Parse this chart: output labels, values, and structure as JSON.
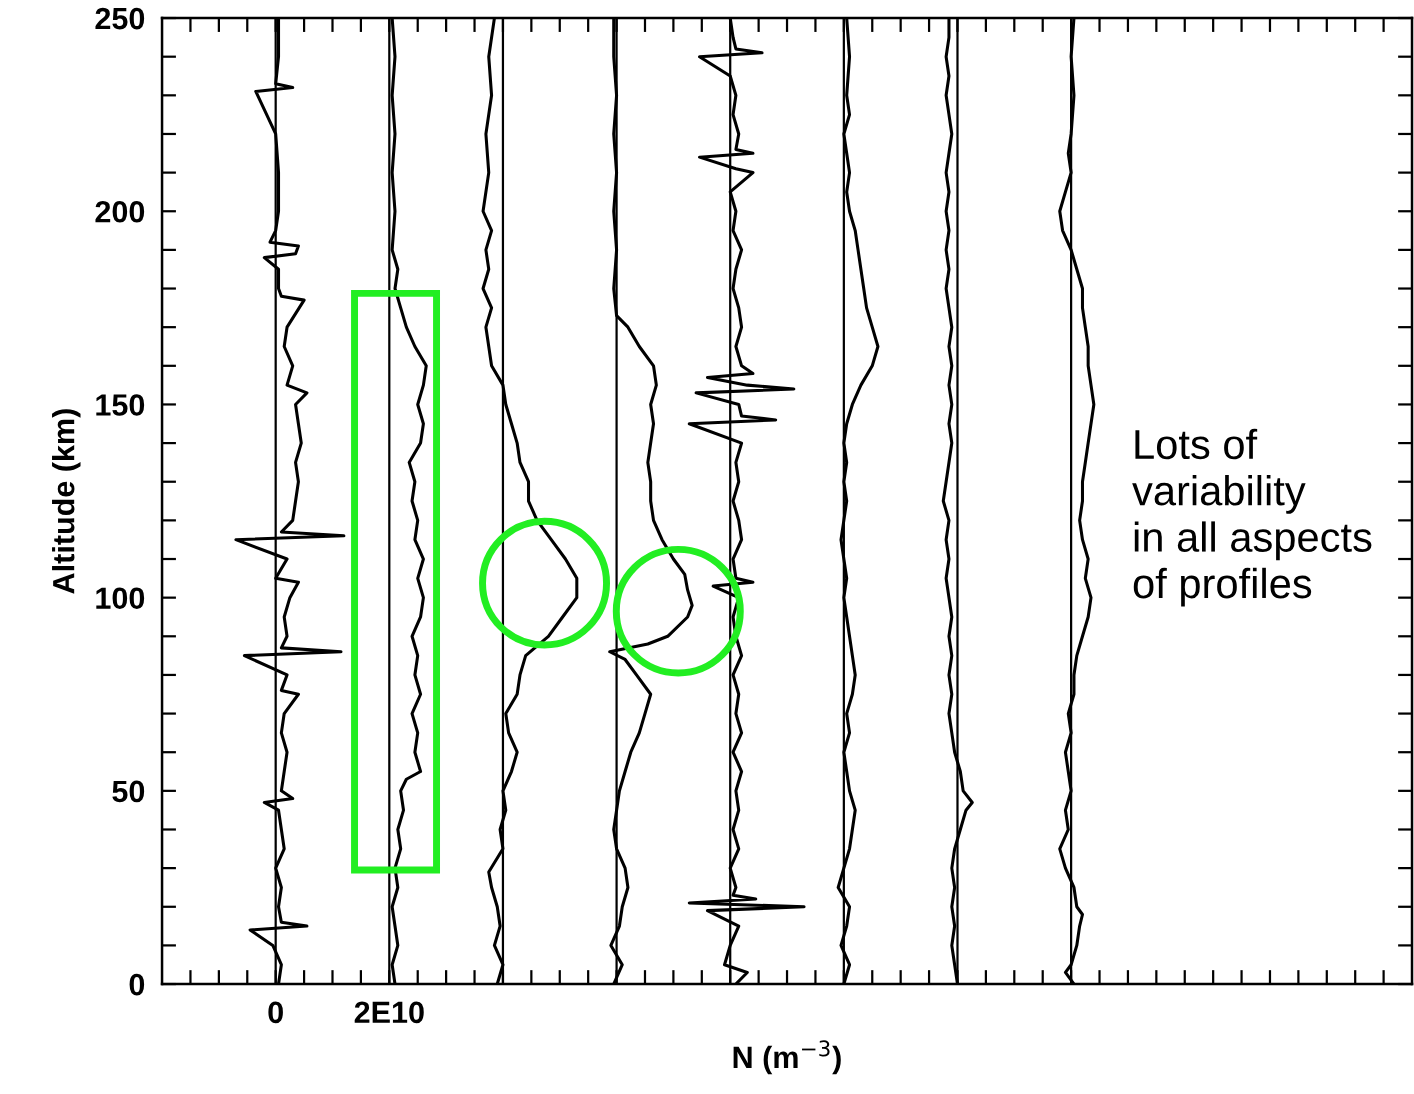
{
  "chart_data": {
    "type": "line",
    "xlabel": "N (m$^{−3}$)",
    "ylabel": "Altitude (km)",
    "xlim": [
      -20000000000.0,
      200000000000.0
    ],
    "ylim": [
      0,
      250
    ],
    "xticks": [
      {
        "value": -15000000000.0,
        "label": null
      },
      {
        "value": -10000000000.0,
        "label": null
      },
      {
        "value": -5000000000.0,
        "label": null
      },
      0,
      {
        "value": 5000000000.0,
        "label": null
      },
      {
        "value": 10000000000.0,
        "label": null
      },
      {
        "value": 15000000000.0,
        "label": null
      },
      {
        "value": 20000000000.0,
        "label": "2E10"
      },
      {
        "value": 25000000000.0,
        "label": null
      },
      {
        "value": 30000000000.0,
        "label": null
      },
      {
        "value": 35000000000.0,
        "label": null
      },
      {
        "value": 40000000000.0,
        "label": null
      },
      {
        "value": 45000000000.0,
        "label": null
      },
      {
        "value": 50000000000.0,
        "label": null
      },
      {
        "value": 55000000000.0,
        "label": null
      },
      {
        "value": 60000000000.0,
        "label": null
      },
      {
        "value": 65000000000.0,
        "label": null
      },
      {
        "value": 70000000000.0,
        "label": null
      },
      {
        "value": 75000000000.0,
        "label": null
      },
      {
        "value": 80000000000.0,
        "label": null
      },
      {
        "value": 85000000000.0,
        "label": null
      },
      {
        "value": 90000000000.0,
        "label": null
      },
      {
        "value": 95000000000.0,
        "label": null
      },
      {
        "value": 100000000000.0,
        "label": null
      },
      {
        "value": 105000000000.0,
        "label": null
      },
      {
        "value": 110000000000.0,
        "label": null
      },
      {
        "value": 115000000000.0,
        "label": null
      },
      {
        "value": 120000000000.0,
        "label": null
      },
      {
        "value": 125000000000.0,
        "label": null
      },
      {
        "value": 130000000000.0,
        "label": null
      },
      {
        "value": 135000000000.0,
        "label": null
      },
      {
        "value": 140000000000.0,
        "label": null
      },
      {
        "value": 145000000000.0,
        "label": null
      },
      {
        "value": 150000000000.0,
        "label": null
      },
      {
        "value": 155000000000.0,
        "label": null
      },
      {
        "value": 160000000000.0,
        "label": null
      },
      {
        "value": 165000000000.0,
        "label": null
      },
      {
        "value": 170000000000.0,
        "label": null
      },
      {
        "value": 175000000000.0,
        "label": null
      },
      {
        "value": 180000000000.0,
        "label": null
      },
      {
        "value": 185000000000.0,
        "label": null
      },
      {
        "value": 190000000000.0,
        "label": null
      },
      {
        "value": 195000000000.0,
        "label": null
      }
    ],
    "yticks": [
      0,
      {
        "value": 10,
        "label": null
      },
      {
        "value": 20,
        "label": null
      },
      {
        "value": 30,
        "label": null
      },
      {
        "value": 40,
        "label": null
      },
      50,
      {
        "value": 60,
        "label": null
      },
      {
        "value": 70,
        "label": null
      },
      {
        "value": 80,
        "label": null
      },
      {
        "value": 90,
        "label": null
      },
      100,
      {
        "value": 110,
        "label": null
      },
      {
        "value": 120,
        "label": null
      },
      {
        "value": 130,
        "label": null
      },
      {
        "value": 140,
        "label": null
      },
      150,
      {
        "value": 160,
        "label": null
      },
      {
        "value": 170,
        "label": null
      },
      {
        "value": 180,
        "label": null
      },
      {
        "value": 190,
        "label": null
      },
      200,
      {
        "value": 210,
        "label": null
      },
      {
        "value": 220,
        "label": null
      },
      {
        "value": 230,
        "label": null
      },
      {
        "value": 240,
        "label": null
      },
      250
    ],
    "grid": false,
    "legend": false,
    "marker": "none",
    "line_style": "solid",
    "ref_lines": [
      {
        "axis": "x",
        "value": 0,
        "color": "#000000"
      },
      {
        "axis": "x",
        "value": 20000000000.0,
        "color": "#000000"
      },
      {
        "axis": "x",
        "value": 40000000000.0,
        "color": "#000000"
      },
      {
        "axis": "x",
        "value": 60000000000.0,
        "color": "#000000"
      },
      {
        "axis": "x",
        "value": 80000000000.0,
        "color": "#000000"
      },
      {
        "axis": "x",
        "value": 100000000000.0,
        "color": "#000000"
      },
      {
        "axis": "x",
        "value": 120000000000.0,
        "color": "#000000"
      },
      {
        "axis": "x",
        "value": 140000000000.0,
        "color": "#000000"
      }
    ],
    "annotations": [
      "Lots of\nvariability\nin all aspects\nof profiles"
    ],
    "series": [
      {
        "color": "#000000",
        "values": [
          0,
          5,
          10,
          14,
          15,
          16,
          20,
          25,
          30,
          35,
          40,
          45,
          47,
          48,
          50,
          55,
          60,
          65,
          70,
          75,
          76,
          80,
          85,
          86,
          87,
          90,
          95,
          100,
          104,
          105,
          110,
          115,
          116,
          117,
          120,
          125,
          130,
          135,
          140,
          145,
          150,
          153,
          155,
          160,
          165,
          170,
          177,
          178,
          180,
          185,
          188,
          189,
          191,
          192,
          195,
          200,
          210,
          220,
          231,
          232,
          233,
          240,
          250
        ],
        "x": [
          500000000.0,
          1000000000.0,
          -500000000.0,
          -4500000000.0,
          5500000000.0,
          1000000000.0,
          500000000.0,
          1000000000.0,
          0.0,
          1500000000.0,
          1000000000.0,
          500000000.0,
          -2000000000.0,
          3000000000.0,
          1000000000.0,
          1500000000.0,
          2000000000.0,
          1000000000.0,
          1500000000.0,
          4000000000.0,
          1000000000.0,
          2000000000.0,
          -5500000000.0,
          11500000000.0,
          1000000000.0,
          2000000000.0,
          1500000000.0,
          2500000000.0,
          4000000000.0,
          0.0,
          2000000000.0,
          -7000000000.0,
          12000000000.0,
          1000000000.0,
          3000000000.0,
          3500000000.0,
          4000000000.0,
          3500000000.0,
          4500000000.0,
          4000000000.0,
          3500000000.0,
          5500000000.0,
          2000000000.0,
          3000000000.0,
          1500000000.0,
          2000000000.0,
          5000000000.0,
          1000000000.0,
          500000000.0,
          500000000.0,
          -2000000000.0,
          3500000000.0,
          4000000000.0,
          -1000000000.0,
          0.0,
          500000000.0,
          500000000.0,
          0.0,
          -3500000000.0,
          3000000000.0,
          0.0,
          500000000.0,
          500000000.0
        ]
      },
      {
        "color": "#000000",
        "values": [
          0,
          5,
          10,
          15,
          20,
          25,
          30,
          35,
          40,
          45,
          50,
          53,
          55,
          60,
          65,
          70,
          75,
          80,
          85,
          90,
          95,
          100,
          105,
          110,
          115,
          120,
          125,
          130,
          135,
          140,
          145,
          150,
          155,
          160,
          165,
          170,
          175,
          180,
          185,
          190,
          200,
          210,
          220,
          230,
          240,
          250
        ],
        "x": [
          21000000000.0,
          20500000000.0,
          21500000000.0,
          21000000000.0,
          20500000000.0,
          21500000000.0,
          21000000000.0,
          22000000000.0,
          21500000000.0,
          22500000000.0,
          22000000000.0,
          23000000000.0,
          25500000000.0,
          24500000000.0,
          25000000000.0,
          24000000000.0,
          25500000000.0,
          24500000000.0,
          25000000000.0,
          24000000000.0,
          25500000000.0,
          26000000000.0,
          25000000000.0,
          26000000000.0,
          24500000000.0,
          25000000000.0,
          24000000000.0,
          24500000000.0,
          23500000000.0,
          25500000000.0,
          26000000000.0,
          25000000000.0,
          26000000000.0,
          26500000000.0,
          24500000000.0,
          23000000000.0,
          22000000000.0,
          21000000000.0,
          21500000000.0,
          20500000000.0,
          21000000000.0,
          20500000000.0,
          21000000000.0,
          20500000000.0,
          21000000000.0,
          20500000000.0
        ]
      },
      {
        "color": "#000000",
        "values": [
          0,
          5,
          10,
          15,
          20,
          25,
          29,
          35,
          40,
          45,
          50,
          55,
          60,
          65,
          70,
          75,
          80,
          85,
          90,
          95,
          100,
          105,
          110,
          115,
          120,
          125,
          130,
          135,
          140,
          145,
          150,
          155,
          160,
          165,
          170,
          175,
          180,
          185,
          190,
          195,
          200,
          210,
          220,
          230,
          240,
          250
        ],
        "x": [
          39000000000.0,
          40000000000.0,
          38500000000.0,
          39500000000.0,
          39000000000.0,
          38000000000.0,
          37500000000.0,
          40000000000.0,
          39500000000.0,
          40500000000.0,
          40000000000.0,
          41500000000.0,
          42500000000.0,
          41000000000.0,
          40500000000.0,
          42500000000.0,
          43000000000.0,
          44000000000.0,
          48000000000.0,
          50500000000.0,
          53000000000.0,
          53000000000.0,
          51000000000.0,
          48500000000.0,
          46000000000.0,
          44500000000.0,
          44500000000.0,
          43000000000.0,
          42500000000.0,
          41500000000.0,
          40500000000.0,
          40000000000.0,
          38000000000.0,
          37500000000.0,
          37000000000.0,
          38000000000.0,
          36500000000.0,
          37500000000.0,
          37000000000.0,
          38000000000.0,
          36500000000.0,
          37500000000.0,
          37000000000.0,
          38000000000.0,
          37500000000.0,
          38500000000.0
        ]
      },
      {
        "color": "#000000",
        "values": [
          0,
          5,
          10,
          15,
          20,
          25,
          30,
          35,
          40,
          45,
          50,
          55,
          60,
          65,
          70,
          75,
          80,
          84,
          86,
          88,
          90,
          95,
          98,
          102,
          106,
          110,
          115,
          120,
          125,
          130,
          135,
          140,
          145,
          150,
          155,
          160,
          165,
          170,
          173,
          180,
          190,
          200,
          210,
          220,
          230,
          240,
          250
        ],
        "x": [
          59500000000.0,
          61000000000.0,
          59000000000.0,
          60500000000.0,
          61000000000.0,
          62000000000.0,
          61500000000.0,
          60000000000.0,
          59500000000.0,
          60000000000.0,
          60500000000.0,
          61500000000.0,
          62500000000.0,
          64000000000.0,
          65000000000.0,
          66000000000.0,
          63500000000.0,
          61500000000.0,
          58800000000.0,
          65500000000.0,
          69000000000.0,
          72500000000.0,
          73300000000.0,
          72500000000.0,
          72000000000.0,
          70000000000.0,
          68000000000.0,
          66500000000.0,
          66000000000.0,
          66000000000.0,
          65500000000.0,
          66000000000.0,
          66500000000.0,
          66000000000.0,
          67000000000.0,
          66500000000.0,
          64000000000.0,
          62000000000.0,
          60000000000.0,
          59500000000.0,
          60000000000.0,
          59500000000.0,
          60000000000.0,
          59500000000.0,
          60000000000.0,
          59500000000.0,
          59500000000.0
        ]
      },
      {
        "color": "#000000",
        "values": [
          0,
          3,
          5,
          10,
          15,
          19,
          20,
          21,
          22,
          23,
          25,
          30,
          35,
          40,
          45,
          50,
          55,
          60,
          65,
          70,
          75,
          80,
          85,
          90,
          95,
          100,
          103,
          104,
          105,
          110,
          115,
          120,
          125,
          130,
          135,
          140,
          145,
          146,
          147,
          150,
          153,
          154,
          155,
          157,
          158,
          160,
          165,
          170,
          175,
          180,
          185,
          190,
          195,
          200,
          205,
          210,
          211,
          214,
          215,
          216,
          220,
          225,
          230,
          235,
          240,
          241,
          242,
          245,
          250
        ],
        "x": [
          81000000000.0,
          83000000000.0,
          79000000000.0,
          80000000000.0,
          81500000000.0,
          76000000000.0,
          93000000000.0,
          72800000000.0,
          84500000000.0,
          80500000000.0,
          81000000000.0,
          80000000000.0,
          81500000000.0,
          80500000000.0,
          81500000000.0,
          81000000000.0,
          82000000000.0,
          80500000000.0,
          82000000000.0,
          81000000000.0,
          81500000000.0,
          80500000000.0,
          82000000000.0,
          81000000000.0,
          80500000000.0,
          81500000000.0,
          77000000000.0,
          84000000000.0,
          81000000000.0,
          80500000000.0,
          82000000000.0,
          81500000000.0,
          80500000000.0,
          81500000000.0,
          81000000000.0,
          82000000000.0,
          72800000000.0,
          88000000000.0,
          82000000000.0,
          81500000000.0,
          74000000000.0,
          91200000000.0,
          83000000000.0,
          76000000000.0,
          84000000000.0,
          82000000000.0,
          81000000000.0,
          82000000000.0,
          81500000000.0,
          80500000000.0,
          81000000000.0,
          82000000000.0,
          80500000000.0,
          81000000000.0,
          80000000000.0,
          84000000000.0,
          81000000000.0,
          74600000000.0,
          84000000000.0,
          81000000000.0,
          81500000000.0,
          80500000000.0,
          81000000000.0,
          80000000000.0,
          74600000000.0,
          85600000000.0,
          81000000000.0,
          80500000000.0,
          80000000000.0
        ]
      },
      {
        "color": "#000000",
        "values": [
          0,
          5,
          10,
          15,
          20,
          25,
          30,
          35,
          40,
          45,
          50,
          55,
          60,
          65,
          70,
          75,
          80,
          85,
          90,
          95,
          100,
          105,
          110,
          115,
          120,
          125,
          130,
          135,
          140,
          145,
          150,
          155,
          160,
          165,
          170,
          175,
          180,
          185,
          190,
          195,
          200,
          205,
          210,
          215,
          220,
          225,
          230,
          240,
          250
        ],
        "x": [
          100000000000.0,
          101000000000.0,
          99500000000.0,
          100500000000.0,
          101000000000.0,
          99000000000.0,
          100000000000.0,
          101000000000.0,
          101500000000.0,
          102000000000.0,
          101000000000.0,
          100500000000.0,
          100000000000.0,
          101000000000.0,
          100500000000.0,
          101500000000.0,
          102000000000.0,
          101500000000.0,
          101000000000.0,
          100500000000.0,
          100000000000.0,
          100500000000.0,
          100000000000.0,
          99500000000.0,
          100000000000.0,
          100500000000.0,
          100000000000.0,
          100500000000.0,
          100000000000.0,
          100500000000.0,
          101500000000.0,
          103000000000.0,
          105000000000.0,
          106000000000.0,
          105000000000.0,
          104000000000.0,
          103500000000.0,
          103000000000.0,
          102500000000.0,
          102000000000.0,
          101000000000.0,
          100500000000.0,
          101000000000.0,
          100500000000.0,
          100000000000.0,
          101000000000.0,
          100500000000.0,
          101000000000.0,
          100500000000.0
        ]
      },
      {
        "color": "#000000",
        "values": [
          0,
          5,
          10,
          15,
          20,
          25,
          30,
          35,
          40,
          45,
          47,
          50,
          55,
          60,
          65,
          70,
          75,
          80,
          85,
          90,
          95,
          100,
          105,
          110,
          115,
          120,
          125,
          130,
          135,
          140,
          145,
          150,
          155,
          160,
          165,
          170,
          175,
          180,
          185,
          190,
          195,
          200,
          205,
          210,
          215,
          220,
          225,
          230,
          235,
          240,
          245,
          250
        ],
        "x": [
          120000000000.0,
          119500000000.0,
          119000000000.0,
          119500000000.0,
          119000000000.0,
          119500000000.0,
          119000000000.0,
          119500000000.0,
          120500000000.0,
          121500000000.0,
          122600000000.0,
          121000000000.0,
          120500000000.0,
          119500000000.0,
          119000000000.0,
          118500000000.0,
          119000000000.0,
          118500000000.0,
          119000000000.0,
          118500000000.0,
          119000000000.0,
          118500000000.0,
          118000000000.0,
          118500000000.0,
          118000000000.0,
          118500000000.0,
          117500000000.0,
          118000000000.0,
          118500000000.0,
          119000000000.0,
          118500000000.0,
          119000000000.0,
          118500000000.0,
          119000000000.0,
          118500000000.0,
          119000000000.0,
          118500000000.0,
          118000000000.0,
          118500000000.0,
          118000000000.0,
          118500000000.0,
          118000000000.0,
          118500000000.0,
          118000000000.0,
          118500000000.0,
          119000000000.0,
          118500000000.0,
          118000000000.0,
          118500000000.0,
          118000000000.0,
          118500000000.0,
          118500000000.0
        ]
      },
      {
        "color": "#000000",
        "values": [
          0,
          3,
          5,
          10,
          15,
          18,
          20,
          25,
          30,
          35,
          40,
          45,
          50,
          55,
          60,
          65,
          70,
          75,
          80,
          85,
          90,
          95,
          100,
          105,
          110,
          115,
          120,
          125,
          130,
          135,
          140,
          145,
          150,
          155,
          160,
          165,
          170,
          175,
          180,
          185,
          190,
          195,
          200,
          205,
          210,
          215,
          220,
          230,
          240,
          250
        ],
        "x": [
          140500000000.0,
          139000000000.0,
          140000000000.0,
          141000000000.0,
          141500000000.0,
          142000000000.0,
          141000000000.0,
          140500000000.0,
          139000000000.0,
          138000000000.0,
          139500000000.0,
          139000000000.0,
          140000000000.0,
          139500000000.0,
          139000000000.0,
          140000000000.0,
          139500000000.0,
          140500000000.0,
          140500000000.0,
          141000000000.0,
          142000000000.0,
          143000000000.0,
          143500000000.0,
          142500000000.0,
          143000000000.0,
          142000000000.0,
          141500000000.0,
          142000000000.0,
          142000000000.0,
          142500000000.0,
          143000000000.0,
          143500000000.0,
          144000000000.0,
          143500000000.0,
          143000000000.0,
          143000000000.0,
          142500000000.0,
          142000000000.0,
          142000000000.0,
          141000000000.0,
          140000000000.0,
          138500000000.0,
          138000000000.0,
          139000000000.0,
          140000000000.0,
          139500000000.0,
          140000000000.0,
          140500000000.0,
          140000000000.0,
          140500000000.0
        ]
      }
    ]
  }
}
